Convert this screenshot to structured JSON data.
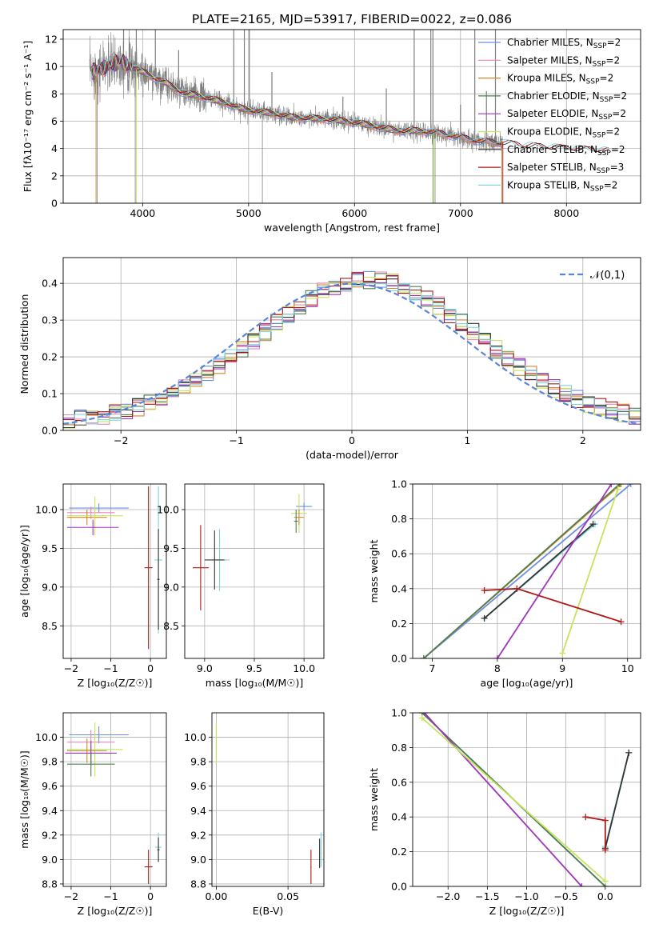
{
  "figure_title": "PLATE=2165, MJD=53917, FIBERID=0022, z=0.086",
  "models": [
    {
      "name": "Chabrier MILES",
      "nssp": "2",
      "color": "#6f8fe0"
    },
    {
      "name": "Salpeter MILES",
      "nssp": "2",
      "color": "#e887b8"
    },
    {
      "name": "Kroupa MILES",
      "nssp": "2",
      "color": "#d2862e"
    },
    {
      "name": "Chabrier ELODIE",
      "nssp": "2",
      "color": "#4e7f4e"
    },
    {
      "name": "Salpeter ELODIE",
      "nssp": "2",
      "color": "#9f35bd"
    },
    {
      "name": "Kroupa ELODIE",
      "nssp": "2",
      "color": "#c6e35c"
    },
    {
      "name": "Chabrier STELIB",
      "nssp": "2",
      "color": "#333333"
    },
    {
      "name": "Salpeter STELIB",
      "nssp": "3",
      "color": "#b01818"
    },
    {
      "name": "Kroupa STELIB",
      "nssp": "2",
      "color": "#7fd4dd"
    }
  ],
  "chart_data": [
    {
      "id": "spectrum",
      "type": "line",
      "xlabel": "wavelength [Angstrom, rest frame]",
      "ylabel": "Flux [fλ10⁻¹⁷ erg cm⁻² s⁻¹ A⁻¹]",
      "xlim": [
        3250,
        8700
      ],
      "ylim": [
        0,
        12.7
      ],
      "xticks": [
        4000,
        5000,
        6000,
        7000,
        8000
      ],
      "yticks": [
        0,
        2,
        4,
        6,
        8,
        10,
        12
      ],
      "data_color": "#808080",
      "data_range": [
        3500,
        7400
      ],
      "continuum": {
        "x": [
          3500,
          3600,
          3700,
          3800,
          3900,
          4000,
          4100,
          4200,
          4300,
          4400,
          4500,
          4600,
          4700,
          4800,
          4900,
          5000,
          5200,
          5400,
          5600,
          5800,
          6000,
          6200,
          6400,
          6600,
          6800,
          7000,
          7200,
          7400,
          7600,
          7800,
          8000,
          8200,
          8400
        ],
        "y": [
          9.5,
          9.8,
          10.1,
          10.4,
          9.9,
          9.6,
          9.2,
          8.9,
          8.4,
          8.0,
          7.9,
          7.7,
          7.5,
          7.3,
          7.0,
          6.8,
          6.6,
          6.3,
          6.2,
          6.1,
          5.9,
          5.6,
          5.3,
          5.3,
          5.1,
          4.8,
          4.5,
          4.4,
          4.2,
          4.1,
          4.0,
          3.9,
          3.8
        ]
      },
      "spikes": [
        {
          "x": 3820,
          "y": 12.7
        },
        {
          "x": 3940,
          "y": 12.7
        },
        {
          "x": 4120,
          "y": 12.7
        },
        {
          "x": 4340,
          "y": 11.2
        },
        {
          "x": 4860,
          "y": 12.7
        },
        {
          "x": 4960,
          "y": 12.7
        },
        {
          "x": 5007,
          "y": 12.7
        },
        {
          "x": 5220,
          "y": 9.6
        },
        {
          "x": 5890,
          "y": 7.8
        },
        {
          "x": 6300,
          "y": 8.4
        },
        {
          "x": 6563,
          "y": 12.7
        },
        {
          "x": 6720,
          "y": 12.7
        },
        {
          "x": 6740,
          "y": 12.7
        },
        {
          "x": 7000,
          "y": 7.2
        },
        {
          "x": 7135,
          "y": 12.7
        },
        {
          "x": 7245,
          "y": 8.2
        },
        {
          "x": 7330,
          "y": 12.7
        }
      ],
      "dips": [
        {
          "x": 5130,
          "y": 0.0
        },
        {
          "x": 3930,
          "y": 0.0
        },
        {
          "x": 6760,
          "y": 0.0
        },
        {
          "x": 3570,
          "y": 0.0
        }
      ]
    },
    {
      "id": "residuals",
      "type": "step",
      "xlabel": "(data-model)/error",
      "ylabel": "Normed distribution",
      "xlim": [
        -2.5,
        2.5
      ],
      "ylim": [
        0,
        0.47
      ],
      "xticks": [
        -2,
        -1,
        0,
        1,
        2
      ],
      "yticks": [
        0.0,
        0.1,
        0.2,
        0.3,
        0.4
      ],
      "reference_label": "𝒩(0,1)",
      "reference_color": "#5b86d6",
      "bin_width": 0.1,
      "bin_start": -2.5
    },
    {
      "id": "age_vs_Z",
      "type": "errorbar",
      "xlabel": "Z [log₁₀(Z/Z☉)]",
      "ylabel": "age  [log₁₀(age/yr)]",
      "xlim": [
        -2.2,
        0.4
      ],
      "ylim": [
        8.08,
        10.33
      ],
      "xticks": [
        -2,
        -1,
        0
      ],
      "yticks": [
        8.5,
        9.0,
        9.5,
        10.0
      ],
      "points": [
        {
          "model": 0,
          "x": -1.3,
          "xerr": 0.75,
          "y": 10.02,
          "yerr": 0.06
        },
        {
          "model": 1,
          "x": -1.5,
          "xerr": 0.6,
          "y": 9.96,
          "yerr": 0.08
        },
        {
          "model": 2,
          "x": -1.6,
          "xerr": 0.5,
          "y": 9.9,
          "yerr": 0.1
        },
        {
          "model": 5,
          "x": -1.4,
          "xerr": 0.7,
          "y": 9.92,
          "yerr": 0.25
        },
        {
          "model": 4,
          "x": -1.45,
          "xerr": 0.65,
          "y": 9.77,
          "yerr": 0.1
        },
        {
          "model": 7,
          "x": -0.05,
          "xerr": 0.1,
          "y": 9.25,
          "yerr": 1.05
        },
        {
          "model": 8,
          "x": 0.2,
          "xerr": 0.1,
          "y": 9.35,
          "yerr": 0.95
        },
        {
          "model": 6,
          "x": 0.2,
          "xerr": 0.03,
          "y": 9.1,
          "yerr": 0.65
        }
      ]
    },
    {
      "id": "age_vs_mass",
      "type": "errorbar",
      "xlabel": "mass [log₁₀(M/M☉)]",
      "ylabel": "",
      "xlim": [
        8.8,
        10.2
      ],
      "ylim": [
        8.08,
        10.33
      ],
      "xticks": [
        9.0,
        9.5,
        10.0
      ],
      "yticks": [
        8.5,
        9.0,
        9.5,
        10.0
      ],
      "points": [
        {
          "model": 0,
          "x": 10.0,
          "xerr": 0.08,
          "y": 10.04,
          "yerr": 0.05
        },
        {
          "model": 5,
          "x": 9.95,
          "xerr": 0.08,
          "y": 9.95,
          "yerr": 0.25
        },
        {
          "model": 2,
          "x": 9.95,
          "xerr": 0.05,
          "y": 9.9,
          "yerr": 0.1
        },
        {
          "model": 3,
          "x": 9.92,
          "xerr": 0.02,
          "y": 9.85,
          "yerr": 0.15
        },
        {
          "model": 7,
          "x": 8.96,
          "xerr": 0.08,
          "y": 9.25,
          "yerr": 0.55
        },
        {
          "model": 8,
          "x": 9.15,
          "xerr": 0.1,
          "y": 9.35,
          "yerr": 0.4
        },
        {
          "model": 6,
          "x": 9.1,
          "xerr": 0.1,
          "y": 9.35,
          "yerr": 0.38
        }
      ]
    },
    {
      "id": "weight_vs_age",
      "type": "line",
      "xlabel": "age  [log₁₀(age/yr)]",
      "ylabel": "mass weight",
      "xlim": [
        6.7,
        10.2
      ],
      "ylim": [
        0,
        1.0
      ],
      "xticks": [
        7,
        8,
        9,
        10
      ],
      "yticks": [
        0.0,
        0.2,
        0.4,
        0.6,
        0.8,
        1.0
      ],
      "series": [
        {
          "model": 0,
          "x": [
            6.87,
            10.05
          ],
          "y": [
            0.0,
            1.0
          ]
        },
        {
          "model": 2,
          "x": [
            6.87,
            9.9
          ],
          "y": [
            0.0,
            1.0
          ]
        },
        {
          "model": 8,
          "x": [
            7.8,
            9.5
          ],
          "y": [
            0.23,
            0.77
          ]
        },
        {
          "model": 6,
          "x": [
            7.8,
            9.47
          ],
          "y": [
            0.23,
            0.77
          ]
        },
        {
          "model": 3,
          "x": [
            6.87,
            9.88
          ],
          "y": [
            0.0,
            1.0
          ]
        },
        {
          "model": 5,
          "x": [
            9.0,
            9.85
          ],
          "y": [
            0.03,
            0.97
          ]
        },
        {
          "model": 4,
          "x": [
            8.0,
            9.75
          ],
          "y": [
            0.0,
            1.0
          ]
        },
        {
          "model": 7,
          "x": [
            7.8,
            8.3,
            9.9
          ],
          "y": [
            0.39,
            0.4,
            0.21
          ]
        }
      ]
    },
    {
      "id": "mass_vs_Z",
      "type": "errorbar",
      "xlabel": "Z [log₁₀(Z/Z☉)]",
      "ylabel": "mass [log₁₀(M/M☉)]",
      "xlim": [
        -2.2,
        0.4
      ],
      "ylim": [
        8.78,
        10.2
      ],
      "xticks": [
        -2,
        -1,
        0
      ],
      "yticks": [
        8.8,
        9.0,
        9.2,
        9.4,
        9.6,
        9.8,
        10.0
      ],
      "points": [
        {
          "model": 0,
          "x": -1.3,
          "xerr": 0.75,
          "y": 10.02,
          "yerr": 0.07
        },
        {
          "model": 1,
          "x": -1.5,
          "xerr": 0.6,
          "y": 9.96,
          "yerr": 0.1
        },
        {
          "model": 5,
          "x": -1.4,
          "xerr": 0.7,
          "y": 9.9,
          "yerr": 0.22
        },
        {
          "model": 2,
          "x": -1.6,
          "xerr": 0.5,
          "y": 9.89,
          "yerr": 0.1
        },
        {
          "model": 4,
          "x": -1.5,
          "xerr": 0.65,
          "y": 9.87,
          "yerr": 0.1
        },
        {
          "model": 3,
          "x": -1.5,
          "xerr": 0.6,
          "y": 9.78,
          "yerr": 0.1
        },
        {
          "model": 7,
          "x": -0.05,
          "xerr": 0.1,
          "y": 8.94,
          "yerr": 0.14
        },
        {
          "model": 8,
          "x": 0.2,
          "xerr": 0.08,
          "y": 9.1,
          "yerr": 0.12
        },
        {
          "model": 6,
          "x": 0.2,
          "xerr": 0.03,
          "y": 9.08,
          "yerr": 0.1
        }
      ]
    },
    {
      "id": "mass_vs_EBV",
      "type": "errorbar",
      "xlabel": "E(B-V)",
      "ylabel": "",
      "xlim": [
        -0.003,
        0.075
      ],
      "ylim": [
        8.78,
        10.2
      ],
      "xticks": [
        0.0,
        0.05
      ],
      "yticks": [
        8.8,
        9.0,
        9.2,
        9.4,
        9.6,
        9.8,
        10.0
      ],
      "points": [
        {
          "model": 5,
          "x": 0.0,
          "xerr": 0.0003,
          "y": 9.95,
          "yerr": 0.17
        },
        {
          "model": 7,
          "x": 0.066,
          "xerr": 0.0003,
          "y": 8.94,
          "yerr": 0.14
        },
        {
          "model": 8,
          "x": 0.073,
          "xerr": 0.0003,
          "y": 9.08,
          "yerr": 0.14
        },
        {
          "model": 6,
          "x": 0.072,
          "xerr": 0.0003,
          "y": 9.05,
          "yerr": 0.12
        }
      ]
    },
    {
      "id": "weight_vs_Z",
      "type": "line",
      "xlabel": "Z [log₁₀(Z/Z☉)]",
      "ylabel": "mass weight",
      "xlim": [
        -2.45,
        0.45
      ],
      "ylim": [
        0,
        1.0
      ],
      "xticks": [
        -2.0,
        -1.5,
        -1.0,
        -0.5,
        0.0
      ],
      "yticks": [
        0.0,
        0.2,
        0.4,
        0.6,
        0.8,
        1.0
      ],
      "series": [
        {
          "model": 0,
          "x": [
            -2.33,
            0.0
          ],
          "y": [
            1.0,
            0.0
          ]
        },
        {
          "model": 3,
          "x": [
            -2.33,
            0.0
          ],
          "y": [
            1.0,
            0.0
          ]
        },
        {
          "model": 4,
          "x": [
            -2.3,
            -0.3
          ],
          "y": [
            1.0,
            0.0
          ]
        },
        {
          "model": 5,
          "x": [
            -2.33,
            0.0
          ],
          "y": [
            0.97,
            0.03
          ]
        },
        {
          "model": 8,
          "x": [
            0.0,
            0.3
          ],
          "y": [
            0.23,
            0.77
          ]
        },
        {
          "model": 6,
          "x": [
            0.0,
            0.3
          ],
          "y": [
            0.22,
            0.77
          ]
        },
        {
          "model": 7,
          "x": [
            -0.25,
            0.0,
            0.0
          ],
          "y": [
            0.4,
            0.38,
            0.21
          ]
        }
      ]
    }
  ]
}
